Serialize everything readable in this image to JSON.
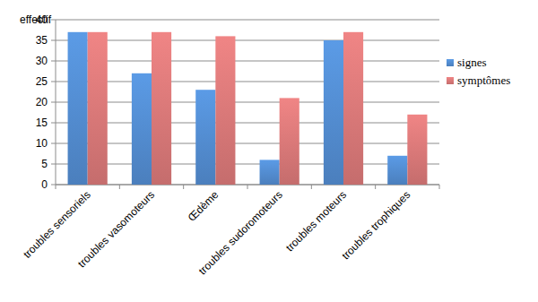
{
  "chart_data": {
    "type": "bar",
    "y_label": "effectif",
    "categories": [
      "troubles sensoriels",
      "troubles vasomoteurs",
      "Œdème",
      "troubles sudoromoteurs",
      "troubles moteurs",
      "troubles trophiques"
    ],
    "series": [
      {
        "name": "signes",
        "color": "#5b9be6",
        "values": [
          37,
          27,
          23,
          6,
          35,
          7
        ]
      },
      {
        "name": "symptômes",
        "color": "#f08585",
        "values": [
          37,
          37,
          36,
          21,
          37,
          17
        ]
      }
    ],
    "ylim": [
      0,
      40
    ],
    "yticks": [
      0,
      5,
      10,
      15,
      20,
      25,
      30,
      35,
      40
    ],
    "grid": true,
    "legend": "right"
  }
}
